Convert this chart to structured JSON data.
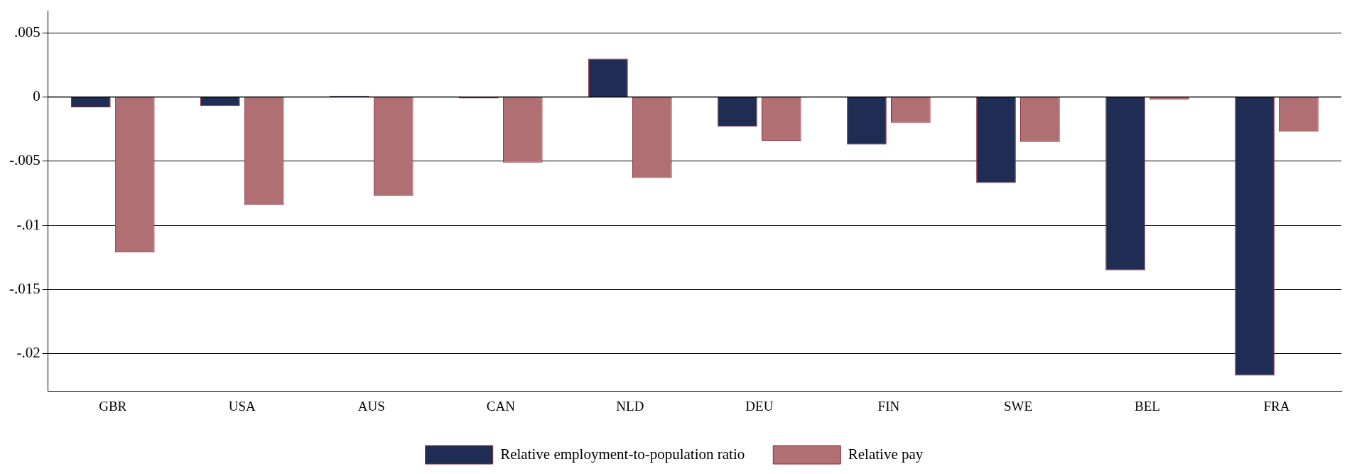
{
  "chart_data": {
    "type": "bar",
    "categories": [
      "GBR",
      "USA",
      "AUS",
      "CAN",
      "NLD",
      "DEU",
      "FIN",
      "SWE",
      "BEL",
      "FRA"
    ],
    "series": [
      {
        "name": "Relative employment-to-population ratio",
        "color": "#1f2d54",
        "values": [
          -0.0008,
          -0.0007,
          0.0001,
          -0.0001,
          0.003,
          -0.0023,
          -0.0037,
          -0.0067,
          -0.0135,
          -0.0217
        ]
      },
      {
        "name": "Relative pay",
        "color": "#b07073",
        "values": [
          -0.0121,
          -0.0084,
          -0.0077,
          -0.0051,
          -0.0063,
          -0.0034,
          -0.002,
          -0.0035,
          -0.0002,
          -0.0027
        ]
      }
    ],
    "ylim": [
      -0.0229,
      0.0067
    ],
    "yticks": [
      {
        "value": 0.005,
        "label": ".005"
      },
      {
        "value": 0,
        "label": "0"
      },
      {
        "value": -0.005,
        "label": "-.005"
      },
      {
        "value": -0.01,
        "label": "-.01"
      },
      {
        "value": -0.015,
        "label": "-.015"
      },
      {
        "value": -0.02,
        "label": "-.02"
      }
    ],
    "ref_lines": [
      {
        "axis": "y",
        "value": 0,
        "color": "#000000"
      }
    ],
    "grid": "y",
    "legend": "bottom"
  }
}
